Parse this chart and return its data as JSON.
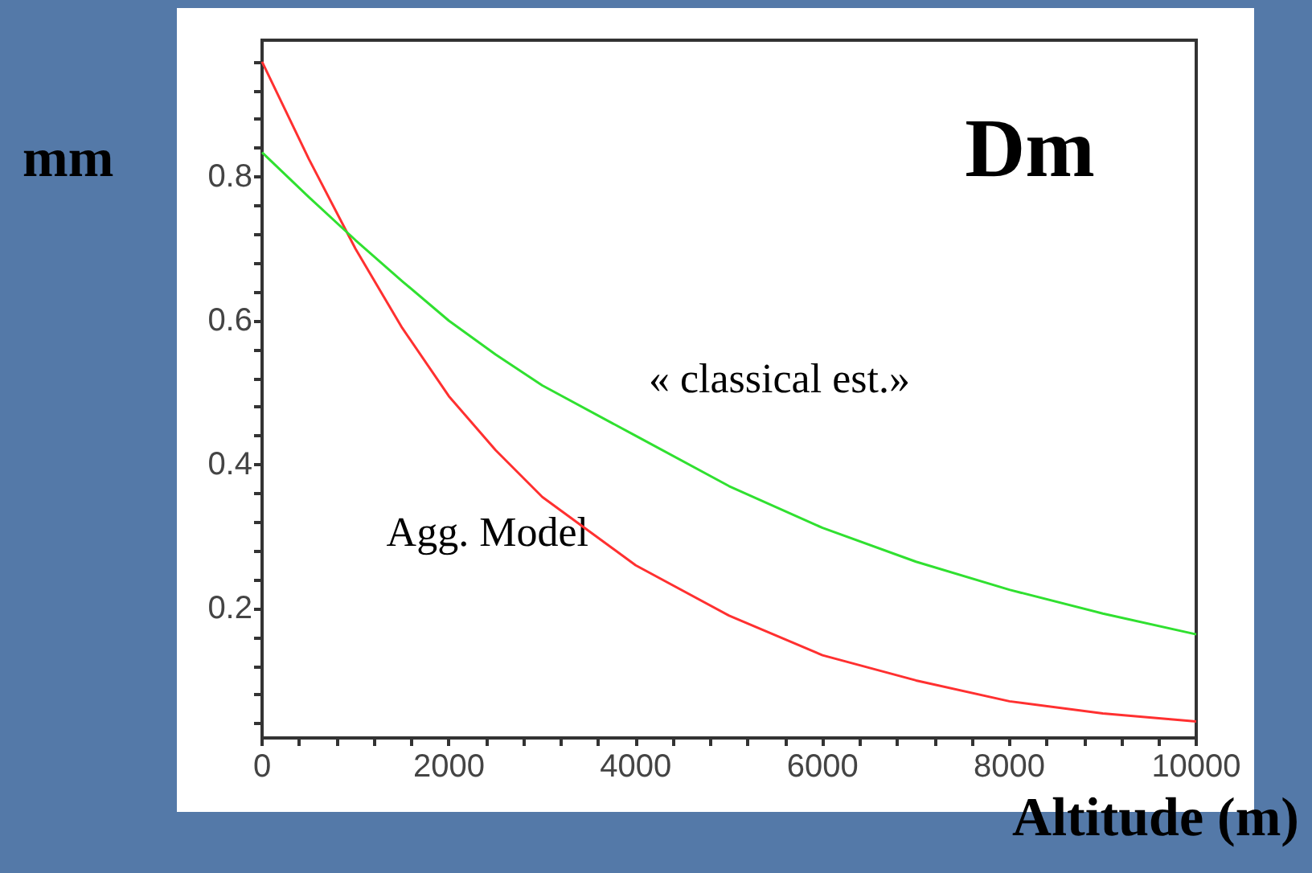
{
  "chart_data": {
    "type": "line",
    "title": "Dm",
    "xlabel": "Altitude (m)",
    "ylabel": "mm",
    "x": [
      0,
      500,
      1000,
      1500,
      2000,
      2500,
      3000,
      4000,
      5000,
      6000,
      7000,
      8000,
      9000,
      10000
    ],
    "series": [
      {
        "name": "Agg. Model",
        "color": "#ff3030",
        "values": [
          0.96,
          0.825,
          0.7,
          0.59,
          0.495,
          0.42,
          0.355,
          0.26,
          0.19,
          0.135,
          0.1,
          0.071,
          0.054,
          0.043
        ]
      },
      {
        "name": "« classical est.»",
        "color": "#30e030",
        "values": [
          0.834,
          0.772,
          0.712,
          0.655,
          0.6,
          0.553,
          0.51,
          0.44,
          0.37,
          0.312,
          0.265,
          0.226,
          0.193,
          0.164
        ]
      }
    ],
    "xlim": [
      0,
      10000
    ],
    "xticks": [
      0,
      {
        "value": 400,
        "label": null
      },
      {
        "value": 800,
        "label": null
      },
      {
        "value": 1200,
        "label": null
      },
      {
        "value": 1600,
        "label": null
      },
      2000,
      {
        "value": 2400,
        "label": null
      },
      {
        "value": 2800,
        "label": null
      },
      {
        "value": 3200,
        "label": null
      },
      {
        "value": 3600,
        "label": null
      },
      4000,
      {
        "value": 4400,
        "label": null
      },
      {
        "value": 4800,
        "label": null
      },
      {
        "value": 5200,
        "label": null
      },
      {
        "value": 5600,
        "label": null
      },
      6000,
      {
        "value": 6400,
        "label": null
      },
      {
        "value": 6800,
        "label": null
      },
      {
        "value": 7200,
        "label": null
      },
      {
        "value": 7600,
        "label": null
      },
      8000,
      {
        "value": 8400,
        "label": null
      },
      {
        "value": 8800,
        "label": null
      },
      {
        "value": 9200,
        "label": null
      },
      {
        "value": 9600,
        "label": null
      },
      10000
    ],
    "ylim": [
      0.02,
      0.99
    ],
    "yticks": [
      {
        "value": 0.04,
        "label": null
      },
      {
        "value": 0.08,
        "label": null
      },
      {
        "value": 0.12,
        "label": null
      },
      {
        "value": 0.16,
        "label": null
      },
      0.2,
      {
        "value": 0.24,
        "label": null
      },
      {
        "value": 0.28,
        "label": null
      },
      {
        "value": 0.32,
        "label": null
      },
      {
        "value": 0.36,
        "label": null
      },
      0.4,
      {
        "value": 0.44,
        "label": null
      },
      {
        "value": 0.48,
        "label": null
      },
      {
        "value": 0.52,
        "label": null
      },
      {
        "value": 0.56,
        "label": null
      },
      0.6,
      {
        "value": 0.64,
        "label": null
      },
      {
        "value": 0.68,
        "label": null
      },
      {
        "value": 0.72,
        "label": null
      },
      {
        "value": 0.76,
        "label": null
      },
      0.8,
      {
        "value": 0.84,
        "label": null
      },
      {
        "value": 0.88,
        "label": null
      },
      {
        "value": 0.92,
        "label": null
      },
      {
        "value": 0.96,
        "label": null
      }
    ],
    "grid": false,
    "legend": false,
    "marker": "none",
    "line_style": "solid"
  }
}
